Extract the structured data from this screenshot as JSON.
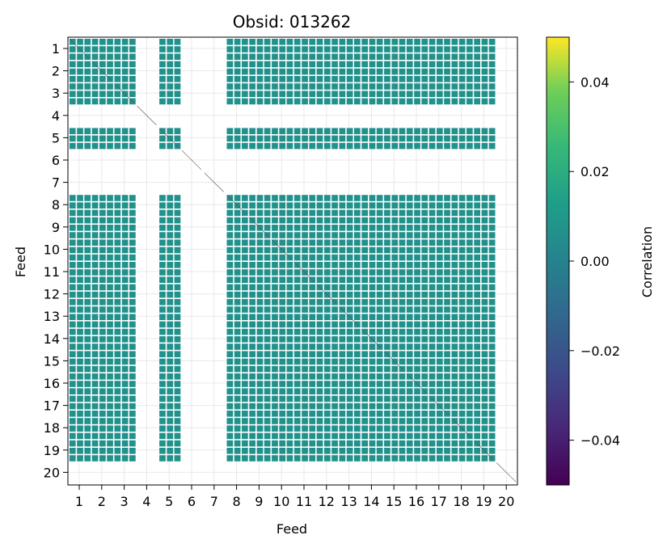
{
  "chart_data": {
    "type": "heatmap",
    "title": "Obsid: 013262",
    "xlabel": "Feed",
    "ylabel": "Feed",
    "x_ticks": [
      "1",
      "2",
      "3",
      "4",
      "5",
      "6",
      "7",
      "8",
      "9",
      "10",
      "11",
      "12",
      "13",
      "14",
      "15",
      "16",
      "17",
      "18",
      "19",
      "20"
    ],
    "y_ticks": [
      "1",
      "2",
      "3",
      "4",
      "5",
      "6",
      "7",
      "8",
      "9",
      "10",
      "11",
      "12",
      "13",
      "14",
      "15",
      "16",
      "17",
      "18",
      "19",
      "20"
    ],
    "grid": true,
    "active_feeds": [
      1,
      2,
      3,
      5,
      8,
      9,
      10,
      11,
      12,
      13,
      14,
      15,
      16,
      17,
      18,
      19
    ],
    "inactive_feeds": [
      4,
      6,
      7,
      20
    ],
    "cell_value": 0.0,
    "colorbar": {
      "label": "Correlation",
      "range": [
        -0.05,
        0.05
      ],
      "ticks": [
        -0.04,
        -0.02,
        0.0,
        0.02,
        0.04
      ],
      "tick_labels": [
        "−0.04",
        "−0.02",
        "0.00",
        "0.02",
        "0.04"
      ],
      "colormap": "viridis"
    },
    "colors": {
      "cell": "#21918c",
      "grid": "#e8e8e8"
    }
  }
}
